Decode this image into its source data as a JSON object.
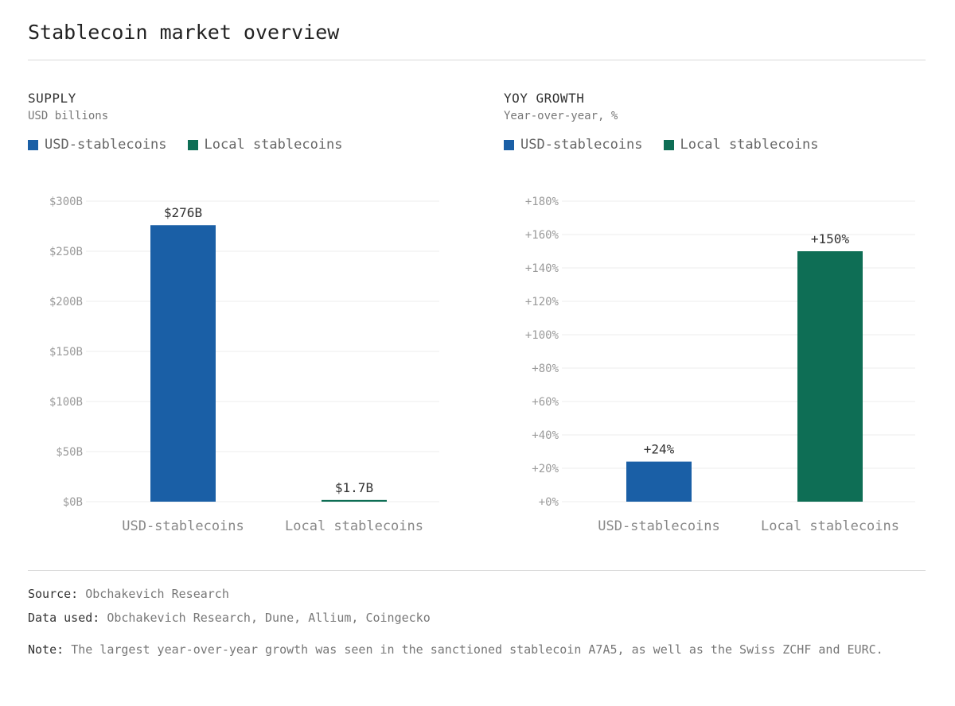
{
  "title": "Stablecoin market overview",
  "colors": {
    "usd": "#1a5fa6",
    "local": "#0e6e55",
    "grid": "#ececec"
  },
  "panels": [
    {
      "title": "SUPPLY",
      "subtitle": "USD billions",
      "legend": [
        "USD-stablecoins",
        "Local stablecoins"
      ]
    },
    {
      "title": "YOY GROWTH",
      "subtitle": "Year-over-year, %",
      "legend": [
        "USD-stablecoins",
        "Local stablecoins"
      ]
    }
  ],
  "chart_data": [
    {
      "type": "bar",
      "title": "SUPPLY",
      "subtitle": "USD billions",
      "categories": [
        "USD-stablecoins",
        "Local stablecoins"
      ],
      "values": [
        276,
        1.7
      ],
      "value_labels": [
        "$276B",
        "$1.7B"
      ],
      "ylim": [
        0,
        300
      ],
      "yticks": [
        0,
        50,
        100,
        150,
        200,
        250,
        300
      ],
      "ytick_labels": [
        "$0B",
        "$50B",
        "$100B",
        "$150B",
        "$200B",
        "$250B",
        "$300B"
      ],
      "grid": true,
      "legend_position": "top-left"
    },
    {
      "type": "bar",
      "title": "YOY GROWTH",
      "subtitle": "Year-over-year, %",
      "categories": [
        "USD-stablecoins",
        "Local stablecoins"
      ],
      "values": [
        24,
        150
      ],
      "value_labels": [
        "+24%",
        "+150%"
      ],
      "ylim": [
        0,
        180
      ],
      "yticks": [
        0,
        20,
        40,
        60,
        80,
        100,
        120,
        140,
        160,
        180
      ],
      "ytick_labels": [
        "+0%",
        "+20%",
        "+40%",
        "+60%",
        "+80%",
        "+100%",
        "+120%",
        "+140%",
        "+160%",
        "+180%"
      ],
      "grid": true,
      "legend_position": "top-left"
    }
  ],
  "footer": {
    "source_label": "Source:",
    "source_value": "Obchakevich Research",
    "data_label": "Data used:",
    "data_value": "Obchakevich Research, Dune, Allium, Coingecko",
    "note_label": "Note:",
    "note_value": "The largest year-over-year growth was seen in the sanctioned stablecoin A7A5, as well as the Swiss ZCHF and EURC."
  }
}
